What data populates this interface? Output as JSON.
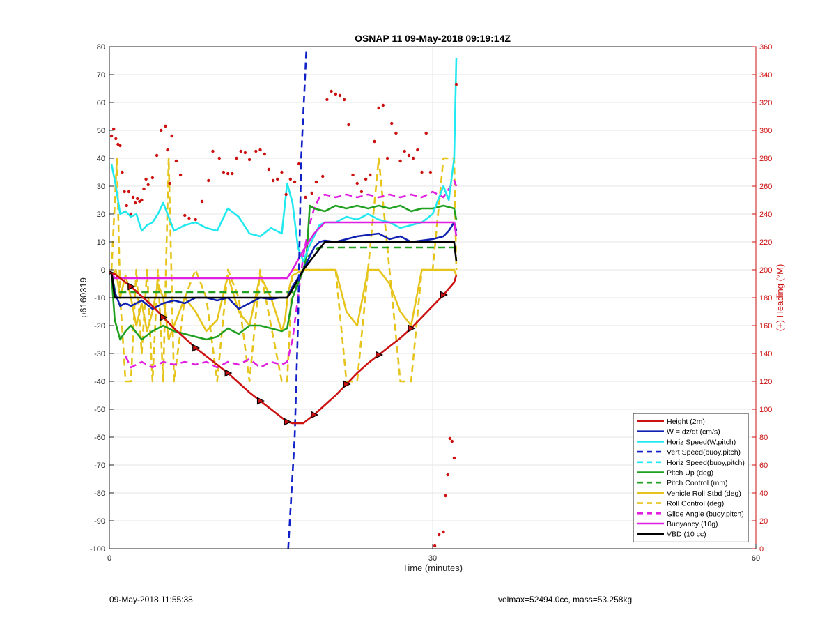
{
  "footer": {
    "left_text": "09-May-2018 11:55:38",
    "right_text": "volmax=52494.0cc, mass=53.258kg"
  },
  "chart_data": {
    "type": "line",
    "title": "OSNAP 11 09-May-2018 09:19:14Z",
    "xlabel": "Time (minutes)",
    "ylabel": "p6160319",
    "y2label": "(+) Heading (°M)",
    "xlim": [
      0,
      60
    ],
    "ylim": [
      -100,
      80
    ],
    "y2lim": [
      0,
      360
    ],
    "xticks": [
      0,
      30,
      60
    ],
    "yticks": [
      -100,
      -90,
      -80,
      -70,
      -60,
      -50,
      -40,
      -30,
      -20,
      -10,
      0,
      10,
      20,
      30,
      40,
      50,
      60,
      70,
      80
    ],
    "y2ticks": [
      0,
      20,
      40,
      60,
      80,
      100,
      120,
      140,
      160,
      180,
      200,
      220,
      240,
      260,
      280,
      300,
      320,
      340,
      360
    ],
    "grid": true,
    "legend_position": "bottom-right",
    "colors": {
      "height": "#cc1111",
      "w": "#1020b0",
      "horiz_w": "#22e8f0",
      "vert_buoy": "#1020c8",
      "horiz_buoy": "#22e8f0",
      "pitch": "#20a020",
      "pitch_ctrl": "#20a020",
      "roll": "#e6c41c",
      "roll_ctrl": "#e6c41c",
      "glide": "#e020e0",
      "buoyancy": "#e020e0",
      "vbd": "#000000",
      "heading": "#cc1111",
      "right_axis": "#cc1111"
    },
    "series": [
      {
        "name": "Height (2m)",
        "key": "height",
        "style": "solid",
        "marker": "triangle",
        "x": [
          0,
          0.5,
          1,
          2,
          3,
          4,
          5,
          6,
          7,
          8,
          9,
          10,
          11,
          12,
          13,
          14,
          15,
          16,
          16.5,
          17,
          18,
          19,
          20,
          21,
          22,
          23,
          24,
          25,
          26,
          27,
          28,
          29,
          30,
          31,
          32,
          32.2
        ],
        "y": [
          -1,
          -1.5,
          -3,
          -6,
          -9.5,
          -13,
          -17,
          -21,
          -24.5,
          -28,
          -31,
          -34,
          -37,
          -40.5,
          -44,
          -47,
          -50,
          -53,
          -54.5,
          -55,
          -55,
          -52,
          -48.5,
          -45,
          -41,
          -37,
          -33.5,
          -30.5,
          -27.5,
          -24.5,
          -21,
          -17,
          -13,
          -9,
          -4.5,
          -2
        ]
      },
      {
        "name": "W = dz/dt (cm/s)",
        "key": "w",
        "style": "solid",
        "x": [
          0.2,
          0.5,
          1,
          1.5,
          2,
          3,
          4,
          5,
          6,
          7,
          8,
          9,
          10,
          11,
          12,
          13,
          14,
          15,
          15.8,
          16.5,
          17,
          17.5,
          18,
          18.5,
          19,
          19.5,
          20,
          21,
          22,
          23,
          24,
          25,
          26,
          27,
          28,
          29,
          30,
          31,
          31.5,
          32,
          32.2
        ],
        "y": [
          -1,
          -8,
          -13,
          -12,
          -13,
          -11,
          -14,
          -12,
          -11,
          -12,
          -10,
          -10,
          -11,
          -10,
          -14,
          -12,
          -10,
          -10.5,
          -10,
          -10,
          -6,
          -3,
          0,
          4,
          8,
          10,
          10.5,
          10,
          11,
          12,
          12.5,
          13,
          11,
          12,
          10,
          10.5,
          11,
          12,
          14,
          17,
          14
        ]
      },
      {
        "name": "Horiz Speed(W,pitch)",
        "key": "horiz_w",
        "style": "solid",
        "x": [
          0.2,
          0.6,
          1,
          1.5,
          2,
          2.5,
          3,
          3.5,
          4,
          4.5,
          5,
          5.5,
          6,
          7,
          8,
          9,
          10,
          11,
          12,
          13,
          14,
          15,
          16,
          16.5,
          17,
          17.5,
          18,
          18.5,
          19,
          19.5,
          20,
          21,
          22,
          23,
          24,
          25,
          26,
          27,
          28,
          29,
          30,
          31,
          31.5,
          32,
          32.2
        ],
        "y": [
          38,
          30,
          20,
          21,
          19,
          20,
          14,
          16,
          17,
          20,
          24,
          19,
          14,
          16,
          17,
          15,
          14,
          22,
          19,
          13,
          12,
          15,
          13,
          31,
          24,
          8,
          3,
          8,
          12,
          16,
          17,
          17,
          19,
          18,
          20,
          18,
          17,
          15,
          16,
          17,
          20,
          30,
          25,
          40,
          76
        ]
      },
      {
        "name": "Vert Speed(buoy,pitch)",
        "key": "vert_buoy",
        "style": "dashed",
        "x": [
          16.6,
          17.2,
          17.5,
          17.8,
          18.3
        ],
        "y": [
          -100,
          -60,
          -20,
          40,
          80
        ]
      },
      {
        "name": "Horiz Speed(buoy,pitch)",
        "key": "horiz_buoy",
        "style": "dashed",
        "x": [],
        "y": []
      },
      {
        "name": "Pitch Up (deg)",
        "key": "pitch",
        "style": "solid",
        "x": [
          0.2,
          0.5,
          1,
          1.5,
          2,
          3,
          4,
          5,
          6,
          7,
          8,
          9,
          10,
          11,
          12,
          13,
          14,
          15,
          16,
          16.5,
          17,
          17.5,
          18,
          18.3,
          18.6,
          19,
          20,
          21,
          22,
          23,
          24,
          25,
          26,
          27,
          28,
          29,
          30,
          31,
          32,
          32.2
        ],
        "y": [
          -2,
          -18,
          -25,
          -22,
          -20,
          -25,
          -22,
          -20,
          -22,
          -23,
          -24,
          -25,
          -24,
          -21,
          -23,
          -20,
          -20,
          -21,
          -22,
          -21,
          -10,
          -5,
          0,
          5,
          23,
          22,
          21,
          23,
          22,
          23,
          22,
          23,
          22,
          23,
          21,
          22,
          22,
          23,
          22,
          18
        ]
      },
      {
        "name": "Pitch Control (mm)",
        "key": "pitch_ctrl",
        "style": "dashed",
        "x": [
          0.2,
          0.5,
          1,
          17,
          17.5,
          18,
          18.5,
          19,
          19.5,
          20,
          32,
          32.2
        ],
        "y": [
          -1,
          -7,
          -8,
          -8,
          -5,
          0,
          5,
          7,
          8,
          8,
          8,
          8
        ]
      },
      {
        "name": "Vehicle Roll Stbd (deg)",
        "key": "roll",
        "style": "solid",
        "x": [
          0.2,
          0.6,
          1,
          1.5,
          2,
          2.5,
          3,
          3.5,
          4,
          4.5,
          5,
          5.5,
          6,
          7,
          8,
          9,
          10,
          11,
          12,
          13,
          14,
          15,
          16,
          16.3,
          16.6,
          17,
          18,
          19,
          20,
          21,
          22,
          23,
          24,
          25,
          26,
          27,
          28,
          29,
          30,
          31,
          32,
          32.2
        ],
        "y": [
          -2,
          0,
          -10,
          -2,
          -10,
          -20,
          -12,
          -22,
          -15,
          -5,
          -10,
          -25,
          -20,
          -10,
          -15,
          -22,
          -18,
          -2,
          -15,
          -20,
          -2,
          -10,
          -22,
          -18,
          -8,
          -2,
          0,
          0,
          0,
          0,
          -15,
          -20,
          0,
          0,
          -5,
          -15,
          -20,
          0,
          0,
          0,
          0,
          -2
        ]
      },
      {
        "name": "Roll Control (deg)",
        "key": "roll_ctrl",
        "style": "dashed",
        "x": [
          0.2,
          0.7,
          1,
          1.5,
          2,
          2.5,
          3,
          3.5,
          4,
          4.5,
          5,
          5.5,
          6,
          7,
          8,
          9,
          10,
          11,
          12,
          13,
          14,
          15,
          16,
          16.5,
          17,
          18,
          19,
          20,
          21,
          22,
          23,
          24,
          25,
          26,
          27,
          28,
          29,
          30,
          31,
          32,
          32.2
        ],
        "y": [
          0,
          40,
          -10,
          -40,
          -40,
          0,
          -30,
          0,
          -40,
          0,
          -40,
          40,
          -40,
          -10,
          0,
          -10,
          -40,
          0,
          -10,
          -40,
          0,
          -20,
          -40,
          -40,
          0,
          0,
          0,
          0,
          0,
          -40,
          -40,
          0,
          40,
          0,
          -40,
          -40,
          0,
          0,
          40,
          40,
          0
        ]
      },
      {
        "name": "Glide Angle (buoy,pitch)",
        "key": "glide",
        "style": "dashed",
        "x": [
          1.5,
          2,
          3,
          4,
          5,
          6,
          7,
          8,
          9,
          10,
          11,
          12,
          13,
          14,
          15,
          16,
          16.5,
          17,
          17.5,
          18,
          18.5,
          19,
          19.5,
          20,
          21,
          22,
          23,
          24,
          25,
          26,
          27,
          28,
          29,
          30,
          31,
          32,
          32.2
        ],
        "y": [
          -31,
          -35,
          -33,
          -35,
          -33,
          -34,
          -33,
          -34,
          -33,
          -35,
          -33,
          -34,
          -32,
          -35,
          -33,
          -34,
          -33,
          -25,
          -10,
          5,
          15,
          22,
          26,
          27,
          26,
          27,
          26,
          27,
          26,
          27,
          26,
          27,
          26,
          28,
          26,
          32,
          30
        ]
      },
      {
        "name": "Buoyancy (10g)",
        "key": "buoyancy",
        "style": "solid",
        "x": [
          0.2,
          0.5,
          16,
          16.5,
          17,
          18,
          19,
          20,
          31.8,
          32,
          32.2
        ],
        "y": [
          -1,
          -3,
          -3,
          -3,
          0,
          7,
          13,
          17,
          17,
          17,
          12
        ]
      },
      {
        "name": "VBD (10 cc)",
        "key": "vbd",
        "style": "solid",
        "x": [
          0.2,
          0.5,
          16,
          16.5,
          17,
          18,
          19,
          20,
          32,
          32.2
        ],
        "y": [
          -1,
          -10,
          -10,
          -10,
          -7,
          0,
          5,
          10,
          10,
          3
        ]
      },
      {
        "name": "",
        "key": "heading",
        "style": "points",
        "axis": "right",
        "x": [
          0.2,
          0.4,
          0.6,
          0.8,
          1.0,
          1.2,
          1.4,
          1.6,
          1.8,
          2.0,
          2.2,
          2.4,
          2.6,
          2.8,
          3.0,
          3.2,
          3.4,
          3.6,
          4.0,
          4.4,
          4.8,
          5.2,
          5.4,
          5.6,
          5.8,
          6.2,
          6.6,
          7.0,
          7.4,
          8.0,
          8.6,
          9.2,
          9.6,
          10.2,
          10.6,
          11.0,
          11.4,
          11.8,
          12.2,
          12.6,
          13.0,
          13.6,
          14.0,
          14.4,
          14.8,
          15.2,
          15.6,
          16.0,
          16.4,
          16.8,
          17.2,
          17.6,
          18.2,
          18.8,
          19.2,
          19.8,
          20.2,
          20.6,
          21.0,
          21.4,
          21.8,
          22.2,
          22.6,
          23.0,
          23.4,
          23.8,
          24.2,
          24.6,
          25.0,
          25.4,
          25.8,
          26.2,
          26.6,
          27.0,
          27.4,
          27.8,
          28.2,
          28.6,
          29.0,
          29.4,
          29.8,
          30.2,
          30.6,
          31.0,
          31.2,
          31.4,
          31.6,
          31.8,
          32.0,
          32.2
        ],
        "y": [
          296,
          301,
          294,
          290,
          289,
          270,
          256,
          246,
          256,
          240,
          252,
          248,
          251,
          249,
          250,
          258,
          265,
          261,
          266,
          282,
          300,
          303,
          286,
          262,
          296,
          278,
          268,
          239,
          237,
          236,
          249,
          264,
          285,
          280,
          270,
          269,
          269,
          280,
          285,
          284,
          279,
          285,
          286,
          283,
          272,
          264,
          265,
          270,
          254,
          265,
          263,
          276,
          252,
          255,
          263,
          267,
          322,
          328,
          326,
          325,
          322,
          304,
          268,
          262,
          256,
          265,
          268,
          292,
          316,
          318,
          280,
          305,
          298,
          278,
          285,
          282,
          280,
          286,
          270,
          298,
          270,
          2,
          10,
          12,
          38,
          53,
          79,
          77,
          65,
          333
        ]
      }
    ]
  }
}
